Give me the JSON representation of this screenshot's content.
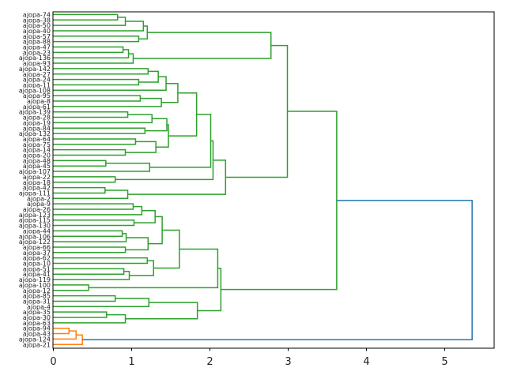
{
  "chart_data": {
    "type": "dendrogram",
    "title": "",
    "xlabel": "",
    "ylabel": "",
    "orientation": "right",
    "xlim": [
      0,
      5.62
    ],
    "xticks": [
      "0",
      "1",
      "2",
      "3",
      "4",
      "5"
    ],
    "colors": {
      "above_threshold": "#1f77b4",
      "cluster_1": "#2ca02c",
      "cluster_2": "#ff7f0e"
    },
    "leaves": [
      "ajopa-74",
      "ajopa-38",
      "ajopa-50",
      "ajopa-40",
      "ajopa-57",
      "ajopa-88",
      "ajopa-47",
      "ajopa-23",
      "ajopa-136",
      "ajopa-93",
      "ajopa-142",
      "ajopa-27",
      "ajopa-24",
      "ajopa-11",
      "ajopa-108",
      "ajopa-95",
      "ajopa-8",
      "ajopa-61",
      "ajopa-139",
      "ajopa-28",
      "ajopa-19",
      "ajopa-84",
      "ajopa-132",
      "ajopa-64",
      "ajopa-75",
      "ajopa-14",
      "ajopa-20",
      "ajopa-48",
      "ajopa-45",
      "ajopa-107",
      "ajopa-22",
      "ajopa-18",
      "ajopa-42",
      "ajopa-111",
      "ajopa-2",
      "ajopa-9",
      "ajopa-26",
      "ajopa-123",
      "ajopa-115",
      "ajopa-130",
      "ajopa-44",
      "ajopa-106",
      "ajopa-122",
      "ajopa-66",
      "ajopa-37",
      "ajopa-62",
      "ajopa-10",
      "ajopa-51",
      "ajopa-41",
      "ajopa-119",
      "ajopa-100",
      "ajopa-12",
      "ajopa-85",
      "ajopa-31",
      "ajopa-4",
      "ajopa-35",
      "ajopa-30",
      "ajopa-63",
      "ajopa-94",
      "ajopa-43",
      "ajopa-124",
      "ajopa-21"
    ],
    "tree": {
      "h": 5.35,
      "color": "#1f77b4",
      "c": [
        {
          "h": 3.62,
          "color": "#2ca02c",
          "c": [
            {
              "h": 2.99,
              "c": [
                {
                  "h": 2.78,
                  "c": [
                    {
                      "h": 1.2,
                      "c": [
                        {
                          "h": 1.15,
                          "c": [
                            {
                              "h": 0.92,
                              "c": [
                                {
                                  "h": 0.82,
                                  "c": [
                                    "ajopa-74",
                                    "ajopa-38"
                                  ]
                                },
                                "ajopa-50"
                              ]
                            },
                            "ajopa-40"
                          ]
                        },
                        {
                          "h": 1.09,
                          "c": [
                            "ajopa-57",
                            "ajopa-88"
                          ]
                        }
                      ]
                    },
                    {
                      "h": 1.02,
                      "c": [
                        {
                          "h": 0.96,
                          "c": [
                            {
                              "h": 0.89,
                              "c": [
                                "ajopa-47",
                                "ajopa-23"
                              ]
                            },
                            "ajopa-136"
                          ]
                        },
                        "ajopa-93"
                      ]
                    }
                  ]
                },
                {
                  "h": 2.2,
                  "c": [
                    {
                      "h": 2.04,
                      "c": [
                        {
                          "h": 2.01,
                          "c": [
                            {
                              "h": 1.83,
                              "c": [
                                {
                                  "h": 1.59,
                                  "c": [
                                    {
                                      "h": 1.44,
                                      "c": [
                                        {
                                          "h": 1.34,
                                          "c": [
                                            {
                                              "h": 1.21,
                                              "c": [
                                                "ajopa-142",
                                                "ajopa-27"
                                              ]
                                            },
                                            {
                                              "h": 1.09,
                                              "c": [
                                                "ajopa-24",
                                                "ajopa-11"
                                              ]
                                            }
                                          ]
                                        },
                                        "ajopa-108"
                                      ]
                                    },
                                    {
                                      "h": 1.38,
                                      "c": [
                                        {
                                          "h": 1.11,
                                          "c": [
                                            "ajopa-95",
                                            "ajopa-8"
                                          ]
                                        },
                                        "ajopa-61"
                                      ]
                                    }
                                  ]
                                },
                                {
                                  "h": 1.47,
                                  "c": [
                                    {
                                      "h": 1.45,
                                      "c": [
                                        {
                                          "h": 1.26,
                                          "c": [
                                            {
                                              "h": 0.95,
                                              "c": [
                                                "ajopa-139",
                                                "ajopa-28"
                                              ]
                                            },
                                            "ajopa-19"
                                          ]
                                        },
                                        {
                                          "h": 1.17,
                                          "c": [
                                            "ajopa-84",
                                            "ajopa-132"
                                          ]
                                        }
                                      ]
                                    },
                                    {
                                      "h": 1.31,
                                      "c": [
                                        {
                                          "h": 1.05,
                                          "c": [
                                            "ajopa-64",
                                            "ajopa-75"
                                          ]
                                        },
                                        {
                                          "h": 0.92,
                                          "c": [
                                            "ajopa-14",
                                            "ajopa-20"
                                          ]
                                        }
                                      ]
                                    }
                                  ]
                                }
                              ]
                            },
                            {
                              "h": 1.23,
                              "c": [
                                {
                                  "h": 0.67,
                                  "c": [
                                    "ajopa-48",
                                    "ajopa-45"
                                  ]
                                },
                                "ajopa-107"
                              ]
                            }
                          ]
                        },
                        {
                          "h": 0.79,
                          "c": [
                            "ajopa-22",
                            "ajopa-18"
                          ]
                        }
                      ]
                    },
                    {
                      "h": 0.95,
                      "c": [
                        {
                          "h": 0.66,
                          "c": [
                            "ajopa-42",
                            "ajopa-111"
                          ]
                        },
                        "ajopa-2"
                      ]
                    }
                  ]
                }
              ]
            },
            {
              "h": 2.14,
              "c": [
                {
                  "h": 2.1,
                  "c": [
                    {
                      "h": 1.61,
                      "c": [
                        {
                          "h": 1.39,
                          "c": [
                            {
                              "h": 1.3,
                              "c": [
                                {
                                  "h": 1.13,
                                  "c": [
                                    {
                                      "h": 1.02,
                                      "c": [
                                        "ajopa-9",
                                        "ajopa-26"
                                      ]
                                    },
                                    "ajopa-123"
                                  ]
                                },
                                {
                                  "h": 1.03,
                                  "c": [
                                    "ajopa-115",
                                    "ajopa-130"
                                  ]
                                }
                              ]
                            },
                            {
                              "h": 1.21,
                              "c": [
                                {
                                  "h": 0.93,
                                  "c": [
                                    {
                                      "h": 0.88,
                                      "c": [
                                        "ajopa-44",
                                        "ajopa-106"
                                      ]
                                    },
                                    "ajopa-122"
                                  ]
                                },
                                {
                                  "h": 0.92,
                                  "c": [
                                    "ajopa-66",
                                    "ajopa-37"
                                  ]
                                }
                              ]
                            }
                          ]
                        },
                        {
                          "h": 1.28,
                          "c": [
                            {
                              "h": 1.2,
                              "c": [
                                "ajopa-62",
                                "ajopa-10"
                              ]
                            },
                            {
                              "h": 0.97,
                              "c": [
                                {
                                  "h": 0.9,
                                  "c": [
                                    "ajopa-51",
                                    "ajopa-41"
                                  ]
                                },
                                "ajopa-119"
                              ]
                            }
                          ]
                        }
                      ]
                    },
                    {
                      "h": 0.45,
                      "c": [
                        "ajopa-100",
                        "ajopa-12"
                      ]
                    }
                  ]
                },
                {
                  "h": 1.84,
                  "c": [
                    {
                      "h": 1.22,
                      "c": [
                        {
                          "h": 0.79,
                          "c": [
                            "ajopa-85",
                            "ajopa-31"
                          ]
                        },
                        "ajopa-4"
                      ]
                    },
                    {
                      "h": 0.92,
                      "c": [
                        {
                          "h": 0.68,
                          "c": [
                            "ajopa-35",
                            "ajopa-30"
                          ]
                        },
                        "ajopa-63"
                      ]
                    }
                  ]
                }
              ]
            }
          ]
        },
        {
          "h": 0.37,
          "color": "#ff7f0e",
          "c": [
            {
              "h": 0.29,
              "c": [
                {
                  "h": 0.2,
                  "c": [
                    "ajopa-94",
                    "ajopa-43"
                  ]
                },
                "ajopa-124"
              ]
            },
            "ajopa-21"
          ]
        }
      ]
    }
  }
}
